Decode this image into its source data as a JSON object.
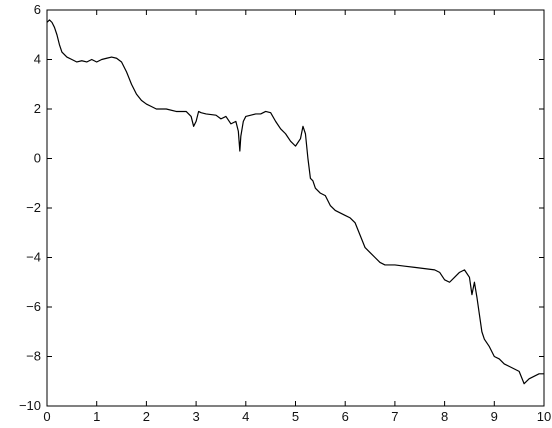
{
  "chart_data": {
    "type": "line",
    "title": "",
    "xlabel": "",
    "ylabel": "",
    "xlim": [
      0,
      10
    ],
    "ylim": [
      -10,
      6
    ],
    "x_ticks": [
      "0",
      "1",
      "2",
      "3",
      "4",
      "5",
      "6",
      "7",
      "8",
      "9",
      "10"
    ],
    "y_ticks": [
      "6",
      "4",
      "2",
      "0",
      "−2",
      "−4",
      "−6",
      "−8",
      "−10"
    ],
    "grid": false,
    "legend": "none",
    "line_color": "#000000",
    "series": [
      {
        "x": [
          0.0,
          0.05,
          0.1,
          0.15,
          0.2,
          0.25,
          0.3,
          0.4,
          0.5,
          0.6,
          0.7,
          0.8,
          0.9,
          1.0,
          1.1,
          1.2,
          1.3,
          1.4,
          1.5,
          1.6,
          1.7,
          1.8,
          1.9,
          2.0,
          2.1,
          2.2,
          2.4,
          2.6,
          2.8,
          2.9,
          2.95,
          3.0,
          3.05,
          3.1,
          3.2,
          3.4,
          3.5,
          3.6,
          3.7,
          3.8,
          3.85,
          3.88,
          3.9,
          3.95,
          4.0,
          4.1,
          4.2,
          4.3,
          4.4,
          4.5,
          4.6,
          4.7,
          4.8,
          4.9,
          5.0,
          5.1,
          5.15,
          5.2,
          5.25,
          5.3,
          5.35,
          5.4,
          5.5,
          5.6,
          5.7,
          5.8,
          5.9,
          6.0,
          6.1,
          6.2,
          6.3,
          6.4,
          6.5,
          6.6,
          6.7,
          6.8,
          7.0,
          7.2,
          7.4,
          7.6,
          7.8,
          7.9,
          8.0,
          8.1,
          8.2,
          8.3,
          8.4,
          8.5,
          8.55,
          8.6,
          8.65,
          8.7,
          8.75,
          8.8,
          8.9,
          9.0,
          9.1,
          9.2,
          9.3,
          9.4,
          9.5,
          9.6,
          9.7,
          9.8,
          9.9,
          10.0
        ],
        "y": [
          5.5,
          5.6,
          5.5,
          5.3,
          5.0,
          4.6,
          4.3,
          4.1,
          4.0,
          3.9,
          3.95,
          3.9,
          4.0,
          3.9,
          4.0,
          4.05,
          4.1,
          4.05,
          3.9,
          3.5,
          3.0,
          2.6,
          2.35,
          2.2,
          2.1,
          2.0,
          2.0,
          1.9,
          1.9,
          1.7,
          1.3,
          1.5,
          1.9,
          1.85,
          1.8,
          1.75,
          1.6,
          1.7,
          1.4,
          1.5,
          1.1,
          0.3,
          0.9,
          1.5,
          1.7,
          1.75,
          1.8,
          1.8,
          1.9,
          1.85,
          1.5,
          1.2,
          1.0,
          0.7,
          0.5,
          0.8,
          1.3,
          1.0,
          0.0,
          -0.8,
          -0.9,
          -1.2,
          -1.4,
          -1.5,
          -1.9,
          -2.1,
          -2.2,
          -2.3,
          -2.4,
          -2.6,
          -3.1,
          -3.6,
          -3.8,
          -4.0,
          -4.2,
          -4.3,
          -4.3,
          -4.35,
          -4.4,
          -4.45,
          -4.5,
          -4.6,
          -4.9,
          -5.0,
          -4.8,
          -4.6,
          -4.5,
          -4.8,
          -5.5,
          -5.0,
          -5.6,
          -6.3,
          -7.0,
          -7.3,
          -7.6,
          -8.0,
          -8.1,
          -8.3,
          -8.4,
          -8.5,
          -8.6,
          -9.1,
          -8.9,
          -8.8,
          -8.7,
          -8.7
        ]
      }
    ]
  }
}
